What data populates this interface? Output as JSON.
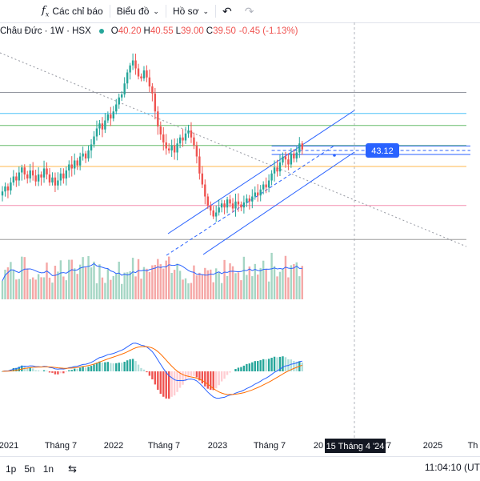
{
  "toolbar": {
    "indicators_label": "Các chỉ báo",
    "chart_label": "Biểu đồ",
    "profile_label": "Hồ sơ"
  },
  "legend": {
    "symbol": "Châu Đức · 1W · HSX",
    "o_label": "O",
    "o_value": "40.20",
    "h_label": "H",
    "h_value": "40.55",
    "l_label": "L",
    "l_value": "39.00",
    "c_label": "C",
    "c_value": "39.50",
    "change": "-0.45 (-1.13%)"
  },
  "price_badge": "43.12",
  "crosshair_label": "15 Tháng 4 '24",
  "xaxis_labels": [
    "2021",
    "Tháng 7",
    "2022",
    "Tháng 7",
    "2023",
    "Tháng 7",
    "20",
    "'7",
    "2025",
    "Th"
  ],
  "bottom": {
    "ranges": [
      "1p",
      "5n",
      "1n"
    ],
    "clock": "11:04:10 (UT"
  },
  "colors": {
    "up": "#26a69a",
    "down": "#ef5350",
    "up_vol": "#a5d6c4",
    "down_vol": "#f5a7a6",
    "channel": "#2962ff",
    "macd_line": "#2962ff",
    "signal_line": "#ff6d00"
  },
  "chart_data": {
    "type": "candlestick",
    "interval": "1W",
    "ylim": [
      28,
      48
    ],
    "closes": [
      33.5,
      34.0,
      33.6,
      34.4,
      35.0,
      34.6,
      35.4,
      35.9,
      35.2,
      34.8,
      35.6,
      35.1,
      34.5,
      35.2,
      34.9,
      35.8,
      35.2,
      34.4,
      34.9,
      34.1,
      34.6,
      35.3,
      34.8,
      35.6,
      36.2,
      35.8,
      36.6,
      36.1,
      37.0,
      37.3,
      36.8,
      37.6,
      38.2,
      39.0,
      39.8,
      40.3,
      39.7,
      40.6,
      41.2,
      40.8,
      41.5,
      42.2,
      42.9,
      43.2,
      44.3,
      45.4,
      46.1,
      46.6,
      45.8,
      45.0,
      44.8,
      45.6,
      44.9,
      44.0,
      43.3,
      41.5,
      40.0,
      39.2,
      38.4,
      37.8,
      37.6,
      38.1,
      37.4,
      38.3,
      38.9,
      38.6,
      39.3,
      39.6,
      38.9,
      38.1,
      37.0,
      35.3,
      34.2,
      33.0,
      32.1,
      31.6,
      31.0,
      31.4,
      31.9,
      32.3,
      31.9,
      32.7,
      32.3,
      31.8,
      32.5,
      32.2,
      31.9,
      32.4,
      32.8,
      32.5,
      33.0,
      33.4,
      33.1,
      33.7,
      34.2,
      33.9,
      34.6,
      35.3,
      35.9,
      35.5,
      36.4,
      37.0,
      36.7,
      36.2,
      37.3,
      36.8,
      37.4,
      38.3,
      37.7
    ],
    "channel": {
      "upper": [
        [
          210,
          292
        ],
        [
          443,
          138
        ]
      ],
      "lower": [
        [
          254,
          318
        ],
        [
          443,
          190
        ]
      ],
      "mid": [
        [
          208,
          319
        ],
        [
          418,
          182
        ]
      ]
    },
    "horizontal_levels": [
      {
        "value": 43.4,
        "color": "#9598a1"
      },
      {
        "value": 41.3,
        "color": "#4fc3f7"
      },
      {
        "value": 40.1,
        "color": "#66bb6a"
      },
      {
        "value": 38.1,
        "color": "#66bb6a"
      },
      {
        "value": 38.05,
        "color": "#2962ff",
        "from_index": 97
      },
      {
        "value": 37.6,
        "color": "#2962ff",
        "dashed": true,
        "from_index": 97
      },
      {
        "value": 37.2,
        "color": "#2962ff",
        "from_index": 97
      },
      {
        "value": 36.0,
        "color": "#ffb74d"
      },
      {
        "value": 32.1,
        "color": "#f48fb1"
      },
      {
        "value": 28.7,
        "color": "#9e9e9e"
      }
    ]
  }
}
